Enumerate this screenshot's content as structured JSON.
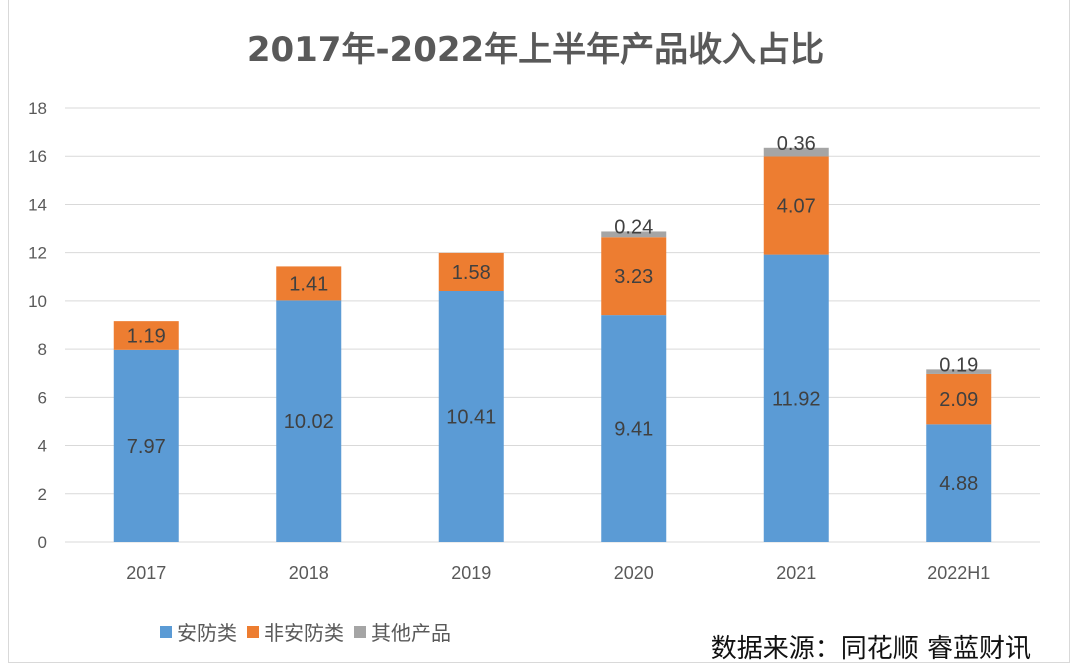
{
  "chart_data": {
    "type": "bar",
    "stacked": true,
    "title": "2017年-2022年上半年产品收入占比",
    "categories": [
      "2017",
      "2018",
      "2019",
      "2020",
      "2021",
      "2022H1"
    ],
    "series": [
      {
        "name": "安防类",
        "color": "#5b9bd5",
        "values": [
          7.97,
          10.02,
          10.41,
          9.41,
          11.92,
          4.88
        ]
      },
      {
        "name": "非安防类",
        "color": "#ed7d31",
        "values": [
          1.19,
          1.41,
          1.58,
          3.23,
          4.07,
          2.09
        ]
      },
      {
        "name": "其他产品",
        "color": "#a5a5a5",
        "values": [
          null,
          null,
          null,
          0.24,
          0.36,
          0.19
        ]
      }
    ],
    "ylim": [
      0,
      18
    ],
    "yticks": [
      "0",
      "2",
      "4",
      "6",
      "8",
      "10",
      "12",
      "14",
      "16",
      "18"
    ],
    "grid": true,
    "legend": "bottom-left"
  },
  "source": "数据来源：同花顺 睿蓝财讯"
}
